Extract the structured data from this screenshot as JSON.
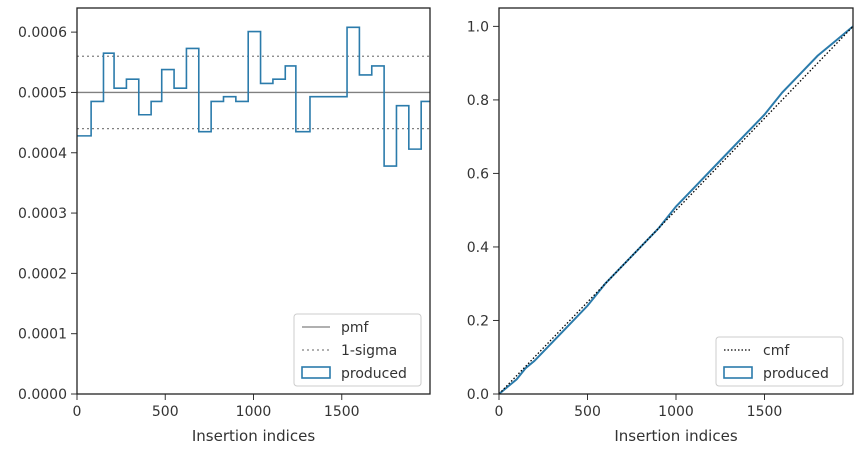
{
  "chart_data": [
    {
      "type": "line",
      "xlabel": "Insertion indices",
      "ylabel": "",
      "xlim": [
        0,
        2000
      ],
      "ylim": [
        0,
        0.00064
      ],
      "x_ticks": [
        {
          "value": 0,
          "label": "0"
        },
        {
          "value": 500,
          "label": "500"
        },
        {
          "value": 1000,
          "label": "1000"
        },
        {
          "value": 1500,
          "label": "1500"
        }
      ],
      "y_ticks": [
        {
          "value": 0,
          "label": "0.0000"
        },
        {
          "value": 0.0001,
          "label": "0.0001"
        },
        {
          "value": 0.0002,
          "label": "0.0002"
        },
        {
          "value": 0.0003,
          "label": "0.0003"
        },
        {
          "value": 0.0004,
          "label": "0.0004"
        },
        {
          "value": 0.0005,
          "label": "0.0005"
        },
        {
          "value": 0.0006,
          "label": "0.0006"
        }
      ],
      "grid": false,
      "legend_position": "lower-right",
      "legend": [
        "pmf",
        "1-sigma",
        "produced"
      ],
      "pmf": {
        "name": "pmf",
        "value": 0.0005,
        "color": "#808080",
        "style": "solid"
      },
      "sigma": {
        "name": "1-sigma",
        "values": [
          0.00044,
          0.00056
        ],
        "color": "#808080",
        "style": "dotted"
      },
      "histogram": {
        "name": "produced",
        "style": "step",
        "color": "#2b7bab",
        "bin_edges": [
          0,
          80,
          150,
          210,
          280,
          350,
          420,
          480,
          550,
          620,
          690,
          760,
          830,
          900,
          970,
          1040,
          1110,
          1180,
          1240,
          1320,
          1390,
          1460,
          1530,
          1600,
          1670,
          1740,
          1810,
          1880,
          1950,
          2000
        ],
        "values": [
          0.000428,
          0.000485,
          0.000565,
          0.000507,
          0.000522,
          0.000463,
          0.000485,
          0.000538,
          0.000507,
          0.000573,
          0.000435,
          0.000485,
          0.000493,
          0.000485,
          0.000601,
          0.000515,
          0.000522,
          0.000544,
          0.000435,
          0.000493,
          0.000493,
          0.000493,
          0.000608,
          0.000529,
          0.000544,
          0.000378,
          0.000478,
          0.000406,
          0.000485
        ]
      }
    },
    {
      "type": "line",
      "xlabel": "Insertion indices",
      "ylabel": "",
      "xlim": [
        0,
        2000
      ],
      "ylim": [
        0,
        1.05
      ],
      "x_ticks": [
        {
          "value": 0,
          "label": "0"
        },
        {
          "value": 500,
          "label": "500"
        },
        {
          "value": 1000,
          "label": "1000"
        },
        {
          "value": 1500,
          "label": "1500"
        }
      ],
      "y_ticks": [
        {
          "value": 0,
          "label": "0.0"
        },
        {
          "value": 0.2,
          "label": "0.2"
        },
        {
          "value": 0.4,
          "label": "0.4"
        },
        {
          "value": 0.6,
          "label": "0.6"
        },
        {
          "value": 0.8,
          "label": "0.8"
        },
        {
          "value": 1.0,
          "label": "1.0"
        }
      ],
      "grid": false,
      "legend_position": "lower-right",
      "legend": [
        "cmf",
        "produced"
      ],
      "series": [
        {
          "name": "cmf",
          "color": "#000000",
          "style": "dotted",
          "x": [
            0,
            2000
          ],
          "values": [
            0,
            1.0
          ]
        },
        {
          "name": "produced",
          "color": "#2b7bab",
          "style": "solid",
          "x": [
            0,
            50,
            100,
            150,
            200,
            300,
            400,
            500,
            600,
            700,
            800,
            900,
            1000,
            1100,
            1200,
            1300,
            1400,
            1500,
            1600,
            1700,
            1800,
            1900,
            2000
          ],
          "values": [
            0,
            0.02,
            0.04,
            0.07,
            0.09,
            0.14,
            0.19,
            0.24,
            0.3,
            0.35,
            0.4,
            0.45,
            0.51,
            0.56,
            0.61,
            0.66,
            0.71,
            0.76,
            0.82,
            0.87,
            0.92,
            0.96,
            1.0
          ]
        }
      ]
    }
  ]
}
